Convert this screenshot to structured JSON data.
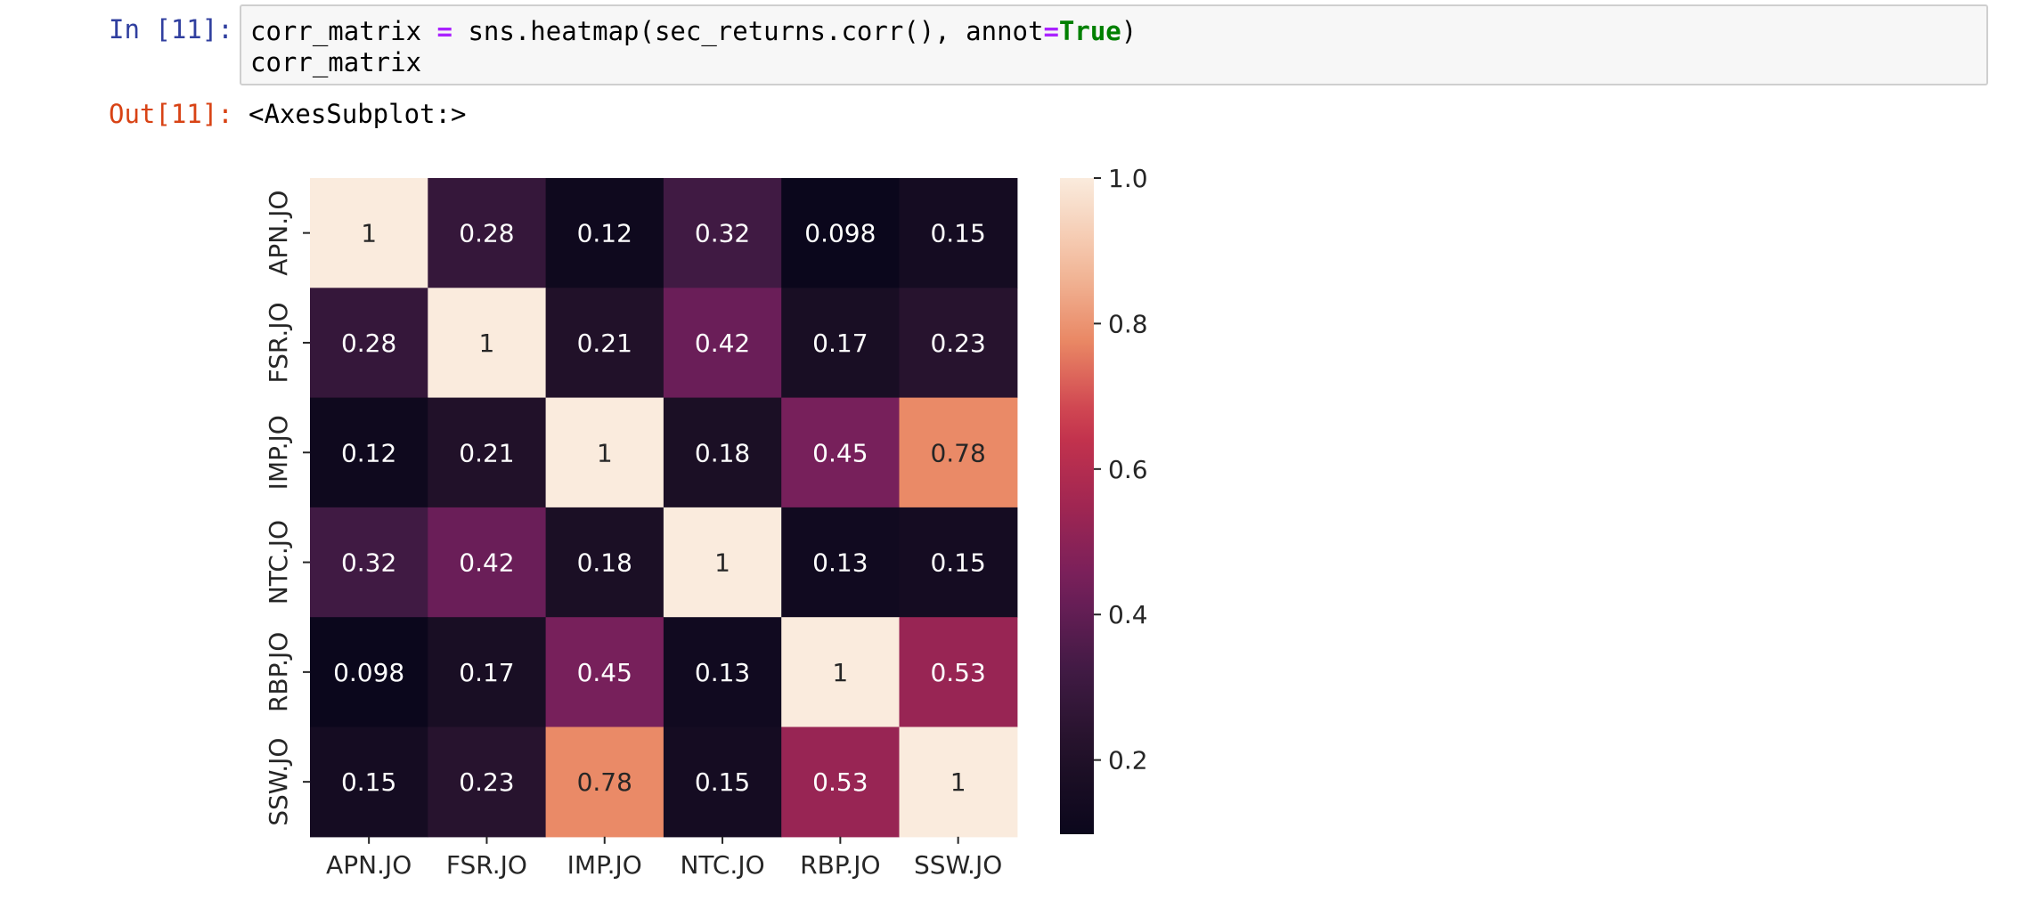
{
  "notebook": {
    "input_prompt": "In [11]:",
    "output_prompt": "Out[11]:",
    "code_line1": {
      "a": "corr_matrix ",
      "op": "=",
      "b": " sns.heatmap(sec_returns.corr(), annot",
      "op2": "=",
      "kw": "True",
      "c": ")"
    },
    "code_line2": "corr_matrix",
    "output_text": "<AxesSubplot:>"
  },
  "chart_data": {
    "type": "heatmap",
    "title": "",
    "xlabel": "",
    "ylabel": "",
    "x_labels": [
      "APN.JO",
      "FSR.JO",
      "IMP.JO",
      "NTC.JO",
      "RBP.JO",
      "SSW.JO"
    ],
    "y_labels": [
      "APN.JO",
      "FSR.JO",
      "IMP.JO",
      "NTC.JO",
      "RBP.JO",
      "SSW.JO"
    ],
    "values": [
      [
        1,
        0.28,
        0.12,
        0.32,
        0.098,
        0.15
      ],
      [
        0.28,
        1,
        0.21,
        0.42,
        0.17,
        0.23
      ],
      [
        0.12,
        0.21,
        1,
        0.18,
        0.45,
        0.78
      ],
      [
        0.32,
        0.42,
        0.18,
        1,
        0.13,
        0.15
      ],
      [
        0.098,
        0.17,
        0.45,
        0.13,
        1,
        0.53
      ],
      [
        0.15,
        0.23,
        0.78,
        0.15,
        0.53,
        1
      ]
    ],
    "annotations": [
      [
        "1",
        "0.28",
        "0.12",
        "0.32",
        "0.098",
        "0.15"
      ],
      [
        "0.28",
        "1",
        "0.21",
        "0.42",
        "0.17",
        "0.23"
      ],
      [
        "0.12",
        "0.21",
        "1",
        "0.18",
        "0.45",
        "0.78"
      ],
      [
        "0.32",
        "0.42",
        "0.18",
        "1",
        "0.13",
        "0.15"
      ],
      [
        "0.098",
        "0.17",
        "0.45",
        "0.13",
        "1",
        "0.53"
      ],
      [
        "0.15",
        "0.23",
        "0.78",
        "0.15",
        "0.53",
        "1"
      ]
    ],
    "colormap": "rocket",
    "color_range": [
      0.098,
      1.0
    ],
    "colorbar_ticks": [
      0.2,
      0.4,
      0.6,
      0.8,
      1.0
    ],
    "colorbar_tick_labels": [
      "0.2",
      "0.4",
      "0.6",
      "0.8",
      "1.0"
    ],
    "annotation_text_colors": {
      "on_dark": "#ffffff",
      "on_light": "#262626"
    }
  }
}
